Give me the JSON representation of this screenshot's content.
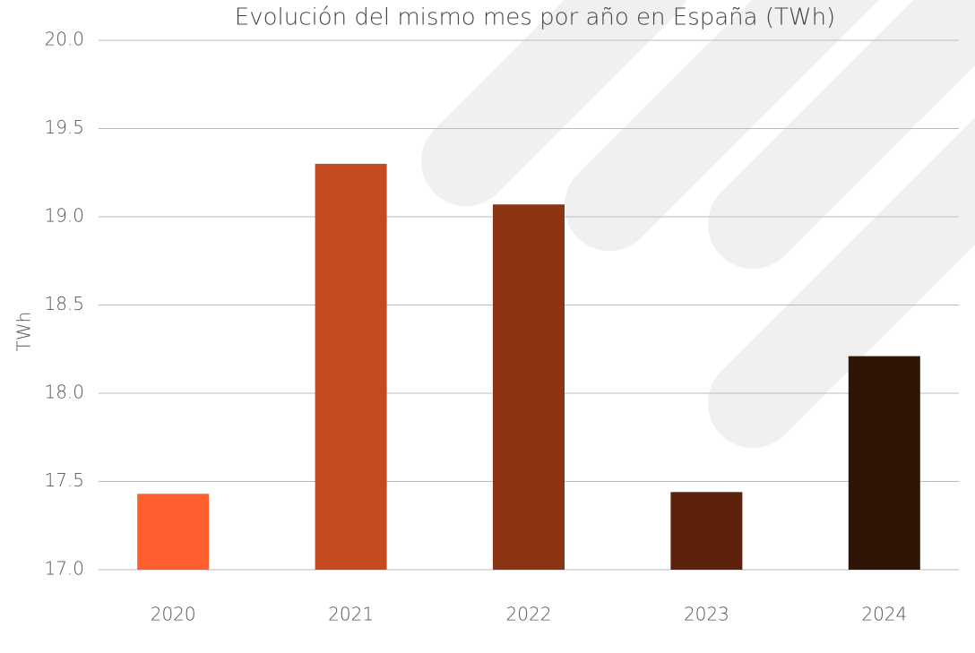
{
  "chart_data": {
    "type": "bar",
    "title": "Evolución del mismo mes por año en España (TWh)",
    "y_label": "TWh",
    "categories": [
      "2020",
      "2021",
      "2022",
      "2023",
      "2024"
    ],
    "values": [
      17.43,
      19.3,
      19.07,
      17.44,
      18.21
    ],
    "colors": [
      "#ff5f2e",
      "#c44a1f",
      "#8c3515",
      "#5c220c",
      "#2e1505"
    ],
    "ylim": [
      17,
      20
    ],
    "yticks": [
      {
        "value": 17,
        "label": "17.0"
      },
      17.5,
      {
        "value": 18,
        "label": "18.0"
      },
      18.5,
      {
        "value": 19,
        "label": "19.0"
      },
      19.5,
      {
        "value": 20,
        "label": "20.0"
      }
    ],
    "grid": true
  }
}
